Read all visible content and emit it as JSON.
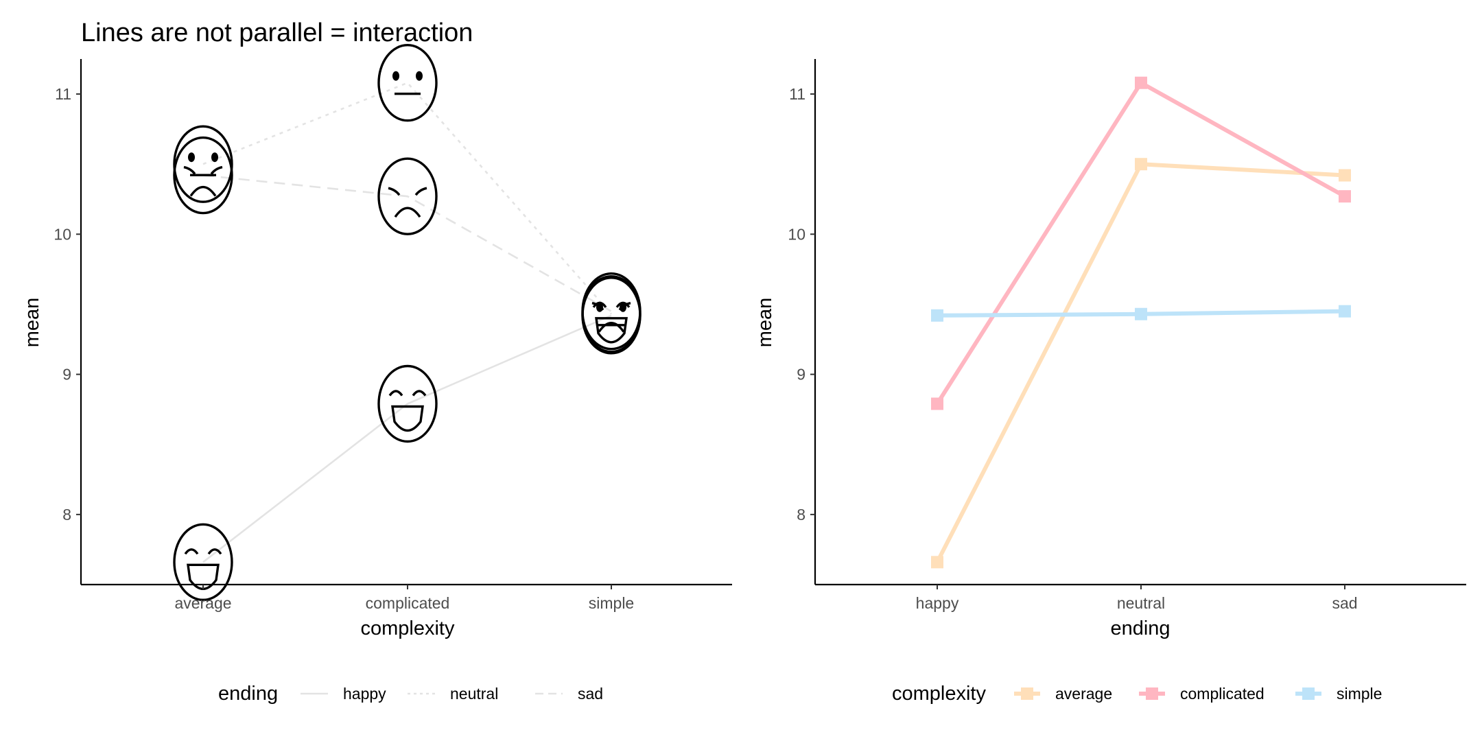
{
  "colors": {
    "average": "#FFDFB9",
    "complicated": "#FFB6C1",
    "simple": "#BDE3F9",
    "face_line": "#e3e3e3"
  },
  "chart_data": [
    {
      "type": "line",
      "title": "Lines are not parallel = interaction",
      "xlabel": "complexity",
      "ylabel": "mean",
      "categories": [
        "average",
        "complicated",
        "simple"
      ],
      "yticks": [
        8,
        9,
        10,
        11
      ],
      "ylim": [
        7.5,
        11.25
      ],
      "grid": false,
      "point_icons": "emoji faces",
      "legend": {
        "title": "ending",
        "position": "bottom",
        "entries": [
          "happy",
          "neutral",
          "sad"
        ]
      },
      "series": [
        {
          "name": "happy",
          "linetype": "solid",
          "face": "laughing-face-icon",
          "values": [
            7.66,
            8.79,
            9.42
          ]
        },
        {
          "name": "neutral",
          "linetype": "dotted",
          "face": "neutral-face-icon",
          "values": [
            10.5,
            11.08,
            9.43
          ]
        },
        {
          "name": "sad",
          "linetype": "dashed",
          "face": "sad-face-icon",
          "values": [
            10.42,
            10.27,
            9.45
          ]
        }
      ]
    },
    {
      "type": "line",
      "title": "",
      "xlabel": "ending",
      "ylabel": "mean",
      "categories": [
        "happy",
        "neutral",
        "sad"
      ],
      "yticks": [
        8,
        9,
        10,
        11
      ],
      "ylim": [
        7.5,
        11.25
      ],
      "grid": false,
      "legend": {
        "title": "complexity",
        "position": "bottom",
        "entries": [
          "average",
          "complicated",
          "simple"
        ]
      },
      "series": [
        {
          "name": "average",
          "color": "#FFDFB9",
          "values": [
            7.66,
            10.5,
            10.42
          ]
        },
        {
          "name": "complicated",
          "color": "#FFB6C1",
          "values": [
            8.79,
            11.08,
            10.27
          ]
        },
        {
          "name": "simple",
          "color": "#BDE3F9",
          "values": [
            9.42,
            9.43,
            9.45
          ]
        }
      ]
    }
  ]
}
